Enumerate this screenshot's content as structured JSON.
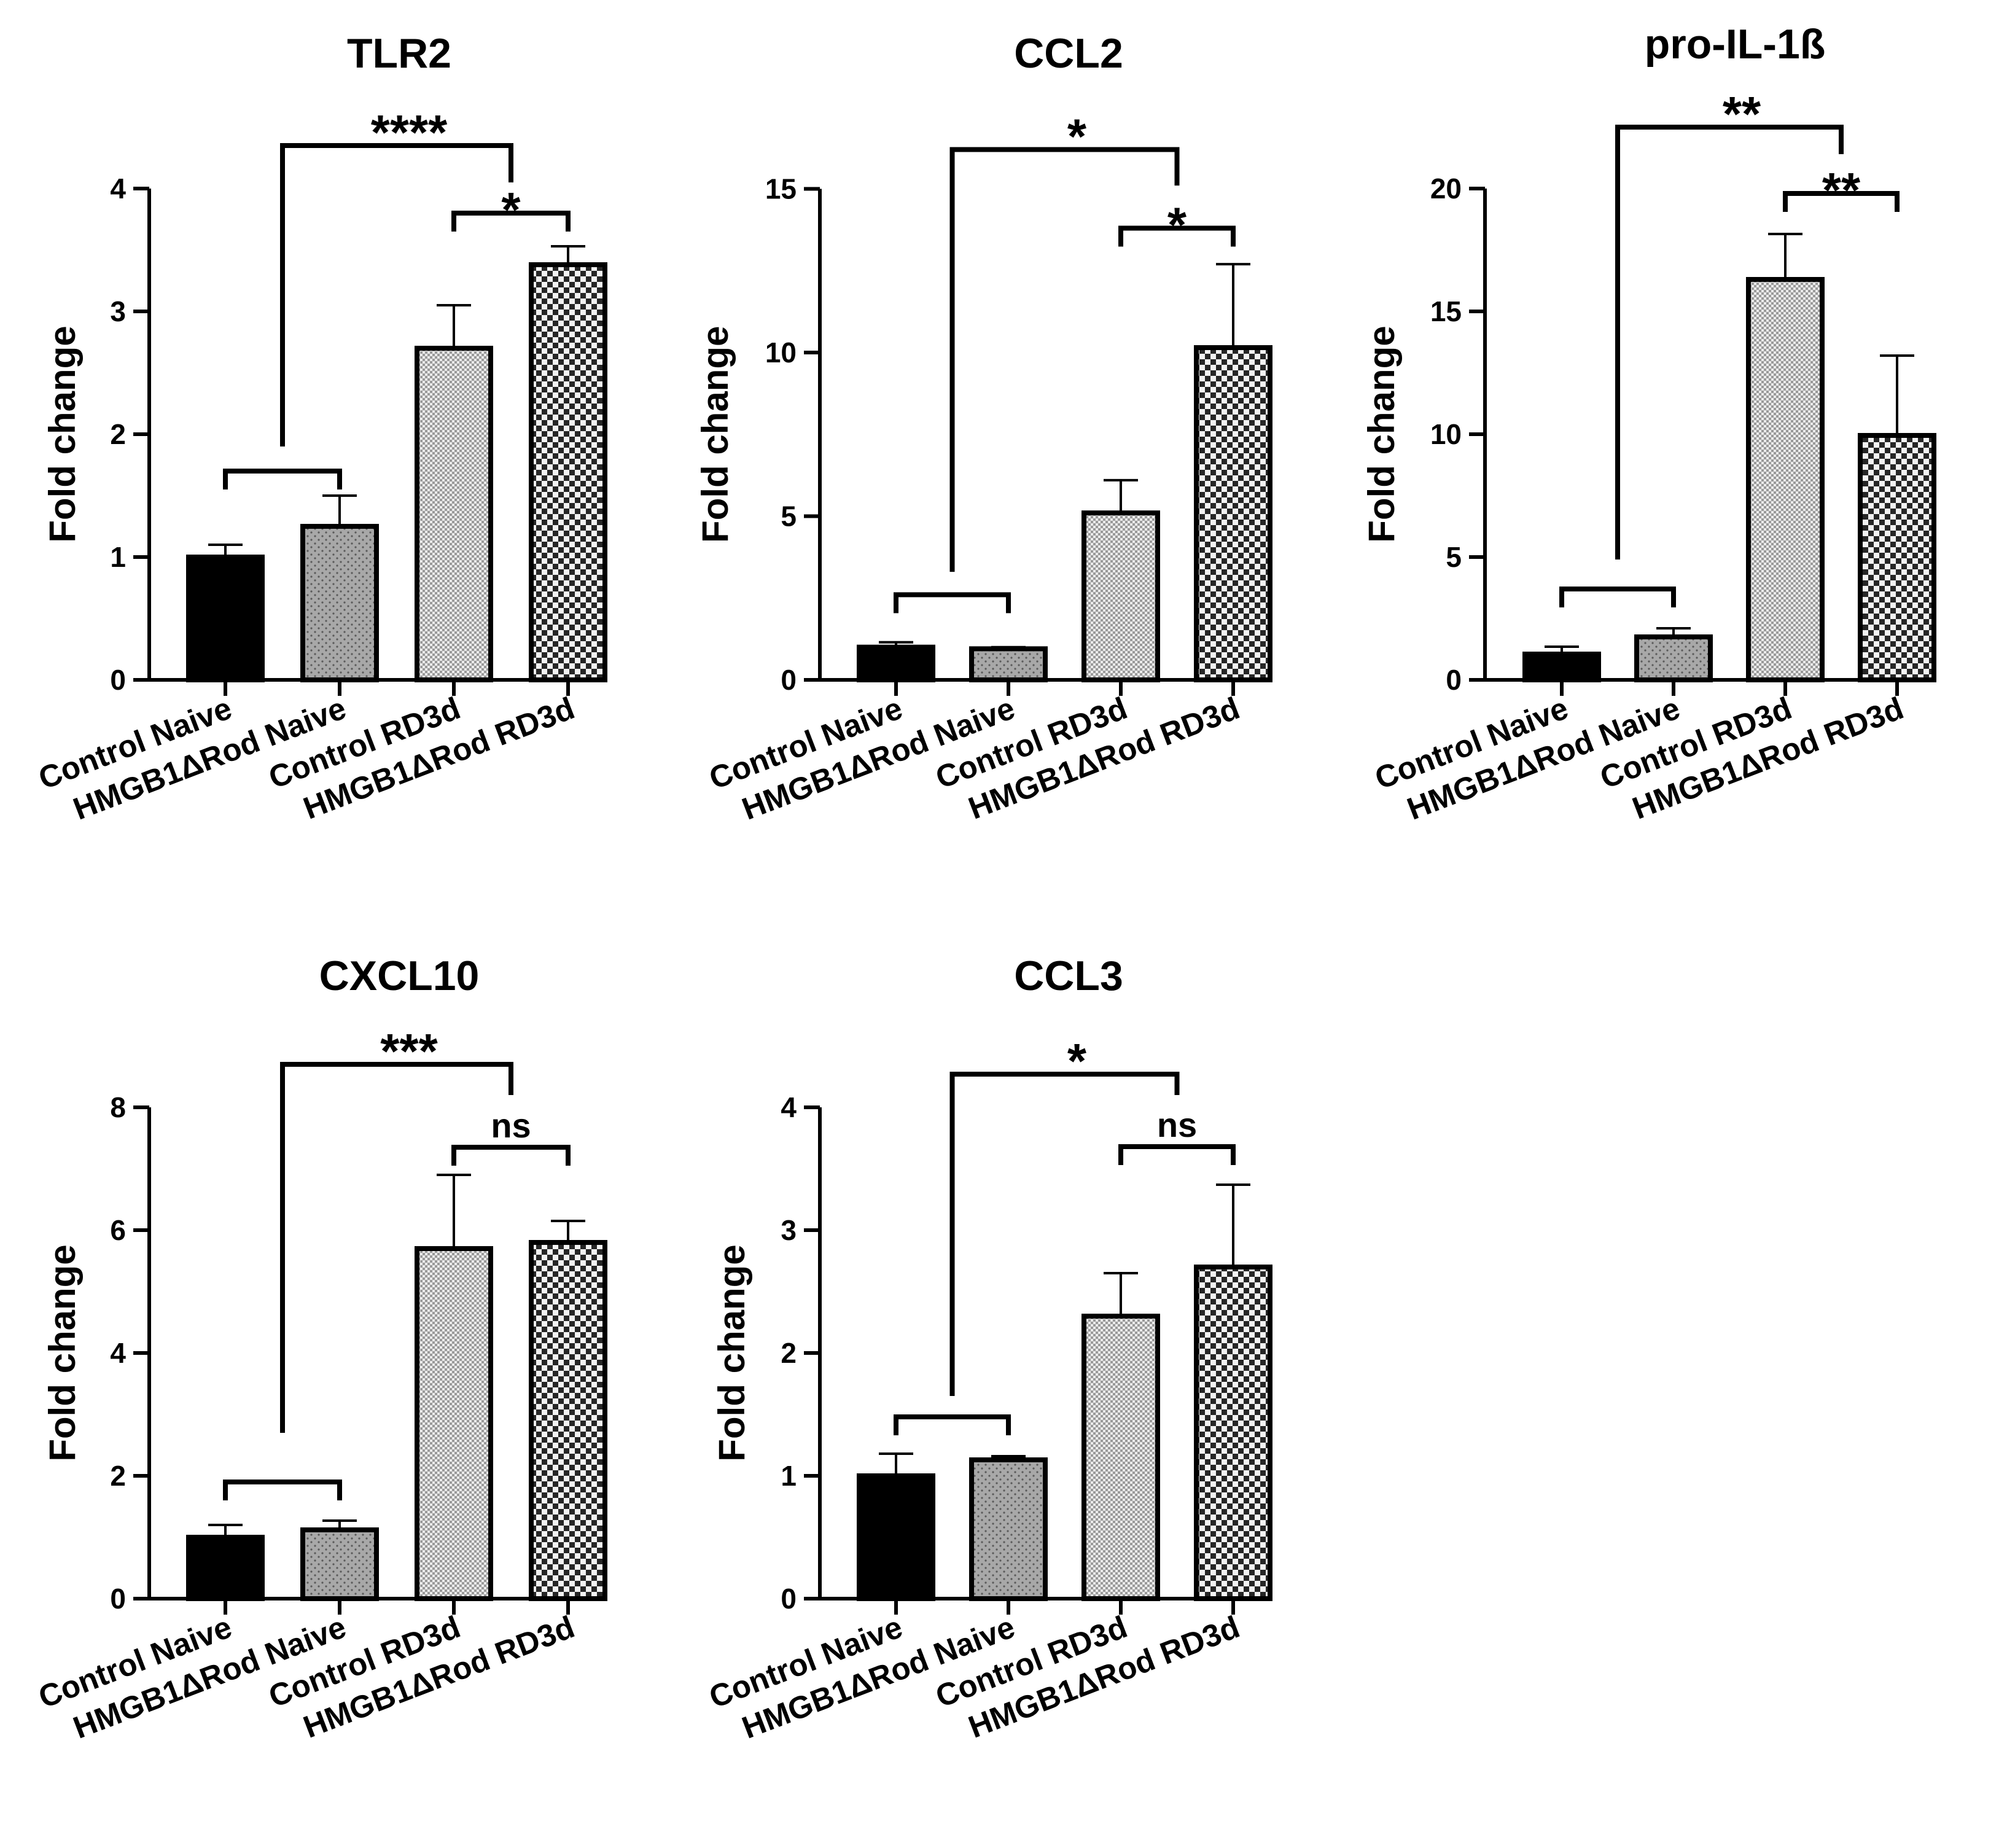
{
  "figure": {
    "panels": [
      {
        "title": "TLR2"
      },
      {
        "title": "CCL2"
      },
      {
        "title": "pro-IL-1ß"
      },
      {
        "title": "CXCL10"
      },
      {
        "title": "CCL3"
      }
    ]
  },
  "chart_data": [
    {
      "type": "bar",
      "title": "TLR2",
      "ylabel": "Fold change",
      "xlabel": "",
      "ylim": [
        0,
        4
      ],
      "yticks": [
        0,
        1,
        2,
        3,
        4
      ],
      "categories": [
        "Control Naive",
        "HMGB1ΔRod Naive",
        "Control RD3d",
        "HMGB1ΔRod RD3d"
      ],
      "values": [
        1.0,
        1.25,
        2.7,
        3.38
      ],
      "errors": [
        0.1,
        0.25,
        0.35,
        0.15
      ],
      "brackets": [
        {
          "type": "pair",
          "from": 0,
          "to": 1,
          "y": 1.7,
          "label": ""
        },
        {
          "type": "pair",
          "from": 2,
          "to": 3,
          "y": 3.8,
          "label": "*"
        },
        {
          "type": "group",
          "from": [
            0,
            1
          ],
          "to": [
            2,
            3
          ],
          "top": 4.35,
          "base_low": 1.9,
          "base_high": 4.05,
          "label": "****"
        }
      ]
    },
    {
      "type": "bar",
      "title": "CCL2",
      "ylabel": "Fold change",
      "xlabel": "",
      "ylim": [
        0,
        15
      ],
      "yticks": [
        0,
        5,
        10,
        15
      ],
      "categories": [
        "Control Naive",
        "HMGB1ΔRod Naive",
        "Control RD3d",
        "HMGB1ΔRod RD3d"
      ],
      "values": [
        1.0,
        0.95,
        5.1,
        10.15
      ],
      "errors": [
        0.15,
        0.05,
        1.0,
        2.55
      ],
      "brackets": [
        {
          "type": "pair",
          "from": 0,
          "to": 1,
          "y": 2.6,
          "label": ""
        },
        {
          "type": "pair",
          "from": 2,
          "to": 3,
          "y": 13.8,
          "label": "*"
        },
        {
          "type": "group",
          "from": [
            0,
            1
          ],
          "to": [
            2,
            3
          ],
          "top": 16.2,
          "base_low": 3.3,
          "base_high": 15.1,
          "label": "*"
        }
      ]
    },
    {
      "type": "bar",
      "title": "pro-IL-1ß",
      "ylabel": "Fold change",
      "xlabel": "",
      "ylim": [
        0,
        20
      ],
      "yticks": [
        0,
        5,
        10,
        15,
        20
      ],
      "categories": [
        "Control Naive",
        "HMGB1ΔRod Naive",
        "Control RD3d",
        "HMGB1ΔRod RD3d"
      ],
      "values": [
        1.05,
        1.75,
        16.3,
        9.95
      ],
      "errors": [
        0.3,
        0.35,
        1.85,
        3.25
      ],
      "brackets": [
        {
          "type": "pair",
          "from": 0,
          "to": 1,
          "y": 3.7,
          "label": ""
        },
        {
          "type": "pair",
          "from": 2,
          "to": 3,
          "y": 19.8,
          "label": "**"
        },
        {
          "type": "group",
          "from": [
            0,
            1
          ],
          "to": [
            2,
            3
          ],
          "top": 22.5,
          "base_low": 4.9,
          "base_high": 21.4,
          "label": "**"
        }
      ]
    },
    {
      "type": "bar",
      "title": "CXCL10",
      "ylabel": "Fold change",
      "xlabel": "",
      "ylim": [
        0,
        8
      ],
      "yticks": [
        0,
        2,
        4,
        6,
        8
      ],
      "categories": [
        "Control Naive",
        "HMGB1ΔRod Naive",
        "Control RD3d",
        "HMGB1ΔRod RD3d"
      ],
      "values": [
        1.0,
        1.12,
        5.7,
        5.8
      ],
      "errors": [
        0.2,
        0.15,
        1.2,
        0.35
      ],
      "brackets": [
        {
          "type": "pair",
          "from": 0,
          "to": 1,
          "y": 1.9,
          "label": ""
        },
        {
          "type": "pair",
          "from": 2,
          "to": 3,
          "y": 7.35,
          "label": "ns"
        },
        {
          "type": "group",
          "from": [
            0,
            1
          ],
          "to": [
            2,
            3
          ],
          "top": 8.7,
          "base_low": 2.7,
          "base_high": 8.2,
          "label": "***"
        }
      ]
    },
    {
      "type": "bar",
      "title": "CCL3",
      "ylabel": "Fold change",
      "xlabel": "",
      "ylim": [
        0,
        4
      ],
      "yticks": [
        0,
        1,
        2,
        3,
        4
      ],
      "categories": [
        "Control Naive",
        "HMGB1ΔRod Naive",
        "Control RD3d",
        "HMGB1ΔRod RD3d"
      ],
      "values": [
        1.0,
        1.13,
        2.3,
        2.7
      ],
      "errors": [
        0.18,
        0.03,
        0.35,
        0.67
      ],
      "brackets": [
        {
          "type": "pair",
          "from": 0,
          "to": 1,
          "y": 1.48,
          "label": ""
        },
        {
          "type": "pair",
          "from": 2,
          "to": 3,
          "y": 3.68,
          "label": "ns"
        },
        {
          "type": "group",
          "from": [
            0,
            1
          ],
          "to": [
            2,
            3
          ],
          "top": 4.27,
          "base_low": 1.65,
          "base_high": 4.1,
          "label": "*"
        }
      ]
    }
  ]
}
